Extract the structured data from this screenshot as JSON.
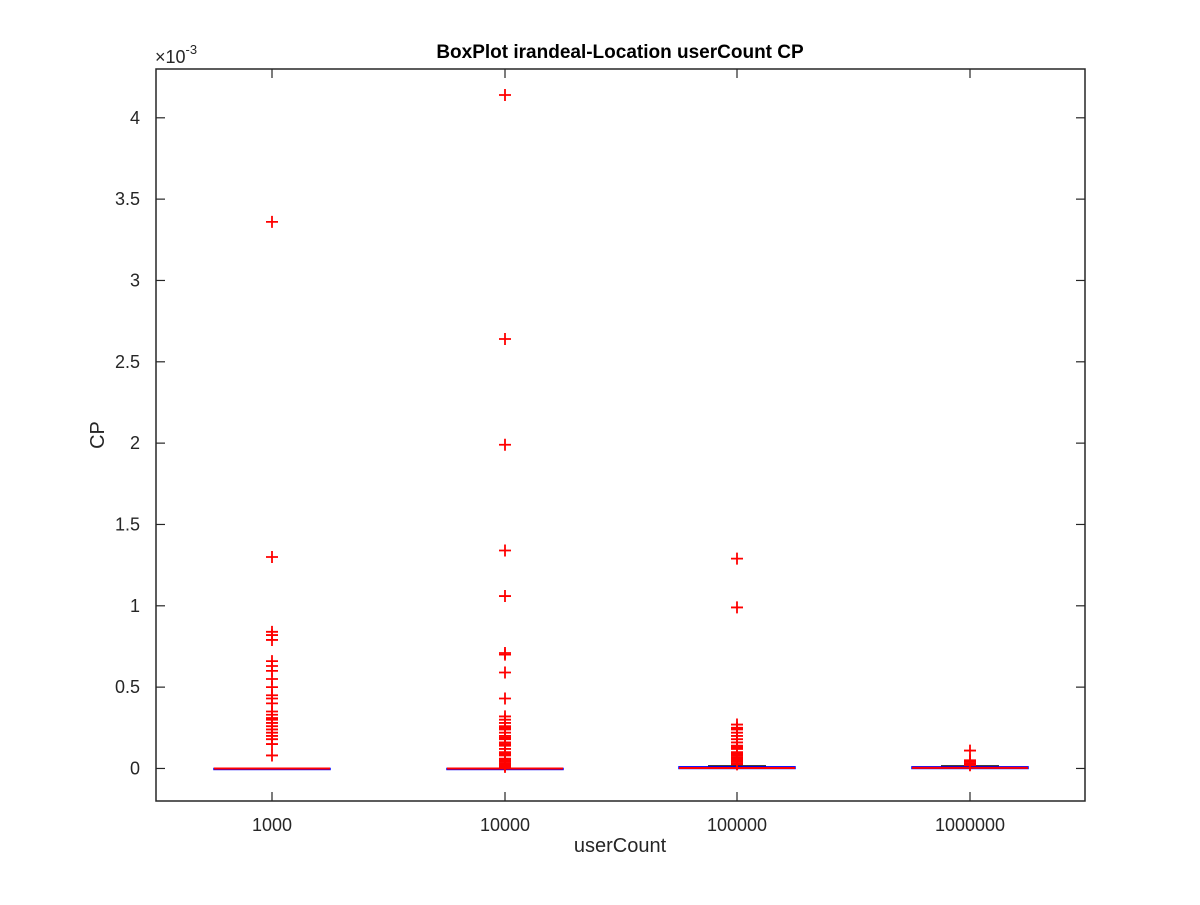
{
  "chart_data": {
    "type": "box",
    "title": "BoxPlot irandeal-Location userCount CP",
    "xlabel": "userCount",
    "ylabel": "CP",
    "exponent_label": "×10",
    "exponent_power": "-3",
    "categories": [
      "1000",
      "10000",
      "100000",
      "1000000"
    ],
    "ylim": [
      -0.2,
      4.3
    ],
    "yticks": [
      0,
      0.5,
      1,
      1.5,
      2,
      2.5,
      3,
      3.5,
      4
    ],
    "ytick_labels": [
      "0",
      "0.5",
      "1",
      "1.5",
      "2",
      "2.5",
      "3",
      "3.5",
      "4"
    ],
    "grid": false,
    "units_multiplier": 0.001,
    "boxes": [
      {
        "category": "1000",
        "q1": 0,
        "median": 0,
        "q3": 0,
        "whisker_low": 0,
        "whisker_high": 0,
        "outliers": [
          3.36,
          1.3,
          0.84,
          0.82,
          0.79,
          0.66,
          0.63,
          0.6,
          0.55,
          0.5,
          0.45,
          0.43,
          0.4,
          0.35,
          0.33,
          0.31,
          0.3,
          0.28,
          0.26,
          0.24,
          0.22,
          0.2,
          0.18,
          0.15,
          0.08
        ]
      },
      {
        "category": "10000",
        "q1": 0,
        "median": 0,
        "q3": 0,
        "whisker_low": 0,
        "whisker_high": 0,
        "outliers": [
          4.14,
          2.64,
          1.99,
          1.34,
          1.06,
          0.71,
          0.7,
          0.59,
          0.43,
          0.32,
          0.3,
          0.28,
          0.26,
          0.25,
          0.24,
          0.22,
          0.2,
          0.19,
          0.18,
          0.16,
          0.15,
          0.14,
          0.12,
          0.1,
          0.09,
          0.08,
          0.06,
          0.05,
          0.04,
          0.03,
          0.02,
          0.01
        ]
      },
      {
        "category": "100000",
        "q1": 0.0,
        "median": 0.003,
        "q3": 0.01,
        "whisker_low": 0,
        "whisker_high": 0.015,
        "outliers": [
          1.29,
          0.99,
          0.27,
          0.25,
          0.24,
          0.22,
          0.2,
          0.18,
          0.16,
          0.14,
          0.13,
          0.12,
          0.1,
          0.09,
          0.08,
          0.07,
          0.06,
          0.05,
          0.04,
          0.03,
          0.025
        ]
      },
      {
        "category": "1000000",
        "q1": 0.0,
        "median": 0.004,
        "q3": 0.01,
        "whisker_low": 0,
        "whisker_high": 0.015,
        "outliers": [
          0.11,
          0.05,
          0.04,
          0.03,
          0.02
        ]
      }
    ],
    "colors": {
      "outlier": "#ff0000",
      "median": "#ff0000",
      "box": "#0000ff",
      "whisker": "#000000",
      "axes": "#262626"
    }
  }
}
